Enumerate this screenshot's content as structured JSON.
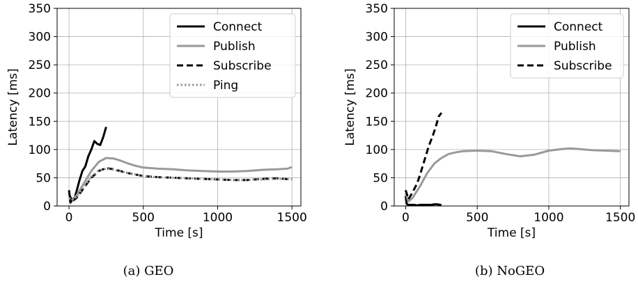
{
  "chart_data": [
    {
      "type": "line",
      "caption": "(a) GEO",
      "xlabel": "Time [s]",
      "ylabel": "Latency [ms]",
      "xlim": [
        -80,
        1560
      ],
      "ylim": [
        0,
        350
      ],
      "xticks": [
        0,
        500,
        1000,
        1500
      ],
      "yticks": [
        0,
        50,
        100,
        150,
        200,
        250,
        300,
        350
      ],
      "grid": true,
      "legend_position": "top-right",
      "series": [
        {
          "name": "Connect",
          "style": "solid",
          "color": "#000000",
          "x": [
            0,
            10,
            20,
            35,
            50,
            70,
            90,
            110,
            130,
            150,
            170,
            190,
            210,
            230,
            250
          ],
          "y": [
            28,
            6,
            10,
            12,
            25,
            45,
            62,
            70,
            88,
            100,
            115,
            110,
            108,
            122,
            140
          ]
        },
        {
          "name": "Publish",
          "style": "solid",
          "color": "#999999",
          "x": [
            0,
            20,
            50,
            100,
            150,
            200,
            250,
            300,
            350,
            400,
            450,
            500,
            600,
            700,
            800,
            900,
            1000,
            1100,
            1200,
            1300,
            1400,
            1470,
            1500
          ],
          "y": [
            18,
            12,
            18,
            40,
            62,
            78,
            85,
            84,
            80,
            75,
            71,
            68,
            66,
            65,
            63,
            62,
            61,
            61,
            62,
            64,
            65,
            66,
            69
          ]
        },
        {
          "name": "Subscribe",
          "style": "dashed",
          "color": "#000000",
          "x": [
            0,
            20,
            50,
            100,
            150,
            200,
            250,
            300,
            400,
            500,
            600,
            700,
            800,
            900,
            1000,
            1100,
            1200,
            1300,
            1400,
            1500
          ],
          "y": [
            22,
            8,
            14,
            32,
            50,
            62,
            67,
            65,
            58,
            53,
            51,
            50,
            49,
            48,
            47,
            46,
            46,
            48,
            49,
            47
          ]
        },
        {
          "name": "Ping",
          "style": "dotted",
          "color": "#999999",
          "x": [
            0,
            20,
            50,
            100,
            150,
            200,
            250,
            300,
            400,
            500,
            600,
            700,
            800,
            900,
            1000,
            1100,
            1200,
            1300,
            1400,
            1500
          ],
          "y": [
            14,
            10,
            16,
            34,
            52,
            63,
            66,
            64,
            58,
            53,
            51,
            50,
            49,
            48,
            47,
            46,
            46,
            47,
            48,
            48
          ]
        }
      ]
    },
    {
      "type": "line",
      "caption": "(b) NoGEO",
      "xlabel": "Time [s]",
      "ylabel": "Latency [ms]",
      "xlim": [
        -80,
        1560
      ],
      "ylim": [
        0,
        350
      ],
      "xticks": [
        0,
        500,
        1000,
        1500
      ],
      "yticks": [
        0,
        50,
        100,
        150,
        200,
        250,
        300,
        350
      ],
      "grid": true,
      "legend_position": "top-right",
      "series": [
        {
          "name": "Connect",
          "style": "solid",
          "color": "#000000",
          "x": [
            0,
            5,
            10,
            20,
            40,
            60,
            80,
            100,
            120,
            150,
            180,
            200,
            220,
            240,
            250
          ],
          "y": [
            18,
            6,
            3,
            2,
            2,
            2,
            1,
            2,
            2,
            2,
            2,
            3,
            3,
            2,
            2
          ]
        },
        {
          "name": "Publish",
          "style": "solid",
          "color": "#999999",
          "x": [
            0,
            20,
            50,
            100,
            150,
            200,
            250,
            300,
            350,
            400,
            500,
            600,
            700,
            800,
            900,
            1000,
            1100,
            1150,
            1200,
            1300,
            1400,
            1500
          ],
          "y": [
            22,
            8,
            15,
            35,
            58,
            75,
            85,
            92,
            95,
            97,
            98,
            97,
            92,
            88,
            91,
            98,
            101,
            102,
            101,
            99,
            98,
            97
          ]
        },
        {
          "name": "Subscribe",
          "style": "dashed",
          "color": "#000000",
          "x": [
            0,
            20,
            50,
            80,
            100,
            130,
            160,
            190,
            210,
            230,
            250
          ],
          "y": [
            28,
            12,
            25,
            40,
            55,
            80,
            105,
            125,
            140,
            158,
            165
          ]
        }
      ]
    }
  ]
}
